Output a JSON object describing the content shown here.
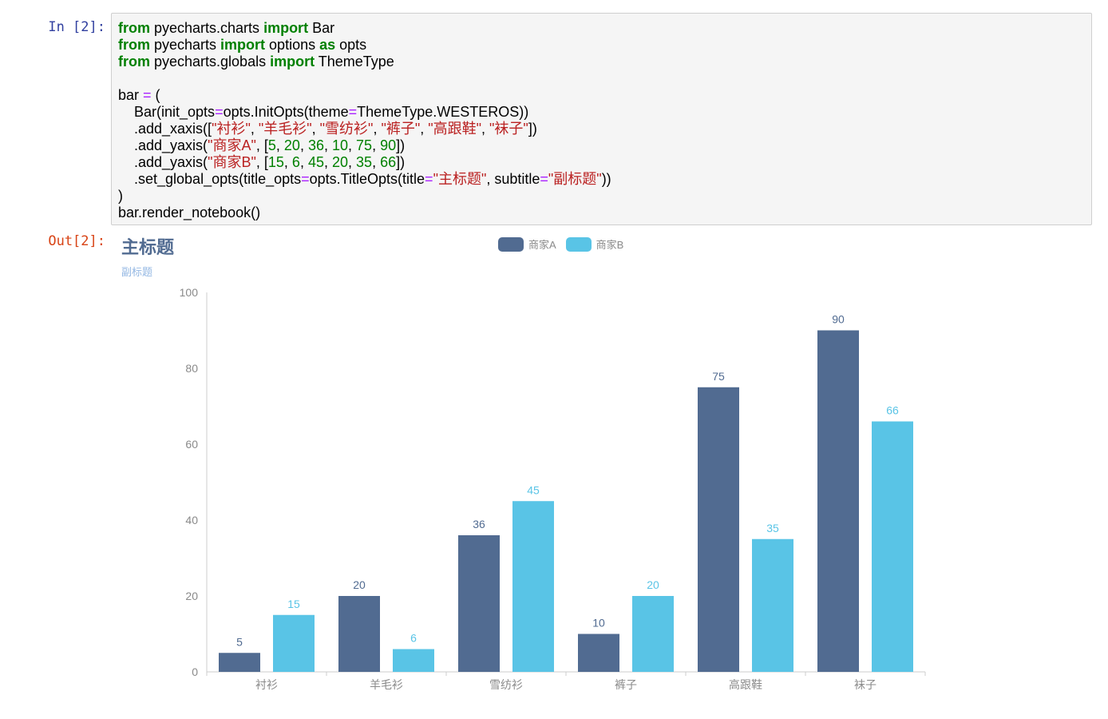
{
  "input_cell": {
    "prompt": "In [2]:",
    "code_lines": [
      [
        {
          "t": "from",
          "c": "kw"
        },
        {
          "t": " pyecharts.charts "
        },
        {
          "t": "import",
          "c": "kw"
        },
        {
          "t": " Bar"
        }
      ],
      [
        {
          "t": "from",
          "c": "kw"
        },
        {
          "t": " pyecharts "
        },
        {
          "t": "import",
          "c": "kw"
        },
        {
          "t": " options "
        },
        {
          "t": "as",
          "c": "kw"
        },
        {
          "t": " opts"
        }
      ],
      [
        {
          "t": "from",
          "c": "kw"
        },
        {
          "t": " pyecharts.globals "
        },
        {
          "t": "import",
          "c": "kw"
        },
        {
          "t": " ThemeType"
        }
      ],
      [],
      [
        {
          "t": "bar "
        },
        {
          "t": "=",
          "c": "op"
        },
        {
          "t": " ("
        }
      ],
      [
        {
          "t": "    Bar(init_opts"
        },
        {
          "t": "=",
          "c": "op"
        },
        {
          "t": "opts.InitOpts(theme"
        },
        {
          "t": "=",
          "c": "op"
        },
        {
          "t": "ThemeType.WESTEROS))"
        }
      ],
      [
        {
          "t": "    .add_xaxis(["
        },
        {
          "t": "\"衬衫\"",
          "c": "str"
        },
        {
          "t": ", "
        },
        {
          "t": "\"羊毛衫\"",
          "c": "str"
        },
        {
          "t": ", "
        },
        {
          "t": "\"雪纺衫\"",
          "c": "str"
        },
        {
          "t": ", "
        },
        {
          "t": "\"裤子\"",
          "c": "str"
        },
        {
          "t": ", "
        },
        {
          "t": "\"高跟鞋\"",
          "c": "str"
        },
        {
          "t": ", "
        },
        {
          "t": "\"袜子\"",
          "c": "str"
        },
        {
          "t": "])"
        }
      ],
      [
        {
          "t": "    .add_yaxis("
        },
        {
          "t": "\"商家A\"",
          "c": "str"
        },
        {
          "t": ", ["
        },
        {
          "t": "5",
          "c": "num"
        },
        {
          "t": ", "
        },
        {
          "t": "20",
          "c": "num"
        },
        {
          "t": ", "
        },
        {
          "t": "36",
          "c": "num"
        },
        {
          "t": ", "
        },
        {
          "t": "10",
          "c": "num"
        },
        {
          "t": ", "
        },
        {
          "t": "75",
          "c": "num"
        },
        {
          "t": ", "
        },
        {
          "t": "90",
          "c": "num"
        },
        {
          "t": "])"
        }
      ],
      [
        {
          "t": "    .add_yaxis("
        },
        {
          "t": "\"商家B\"",
          "c": "str"
        },
        {
          "t": ", ["
        },
        {
          "t": "15",
          "c": "num"
        },
        {
          "t": ", "
        },
        {
          "t": "6",
          "c": "num"
        },
        {
          "t": ", "
        },
        {
          "t": "45",
          "c": "num"
        },
        {
          "t": ", "
        },
        {
          "t": "20",
          "c": "num"
        },
        {
          "t": ", "
        },
        {
          "t": "35",
          "c": "num"
        },
        {
          "t": ", "
        },
        {
          "t": "66",
          "c": "num"
        },
        {
          "t": "])"
        }
      ],
      [
        {
          "t": "    .set_global_opts(title_opts"
        },
        {
          "t": "=",
          "c": "op"
        },
        {
          "t": "opts.TitleOpts(title"
        },
        {
          "t": "=",
          "c": "op"
        },
        {
          "t": "\"主标题\"",
          "c": "str"
        },
        {
          "t": ", subtitle"
        },
        {
          "t": "=",
          "c": "op"
        },
        {
          "t": "\"副标题\"",
          "c": "str"
        },
        {
          "t": "))"
        }
      ],
      [
        {
          "t": ")"
        }
      ],
      [
        {
          "t": "bar.render_notebook()"
        }
      ]
    ]
  },
  "output_cell": {
    "prompt": "Out[2]:"
  },
  "chart_data": {
    "type": "bar",
    "title": "主标题",
    "subtitle": "副标题",
    "categories": [
      "衬衫",
      "羊毛衫",
      "雪纺衫",
      "裤子",
      "高跟鞋",
      "袜子"
    ],
    "series": [
      {
        "name": "商家A",
        "values": [
          5,
          20,
          36,
          10,
          75,
          90
        ],
        "color": "#516b91"
      },
      {
        "name": "商家B",
        "values": [
          15,
          6,
          45,
          20,
          35,
          66
        ],
        "color": "#59c4e6"
      }
    ],
    "y_ticks": [
      0,
      20,
      40,
      60,
      80,
      100
    ],
    "ylim": [
      0,
      100
    ],
    "legend_position": "top-center",
    "grid": false,
    "show_value_labels": true
  },
  "colors": {
    "prompt_in": "#303F9F",
    "prompt_out": "#D84315",
    "title": "#516b91",
    "subtitle": "#93b7e3",
    "axis_label": "#8a8a8a"
  }
}
